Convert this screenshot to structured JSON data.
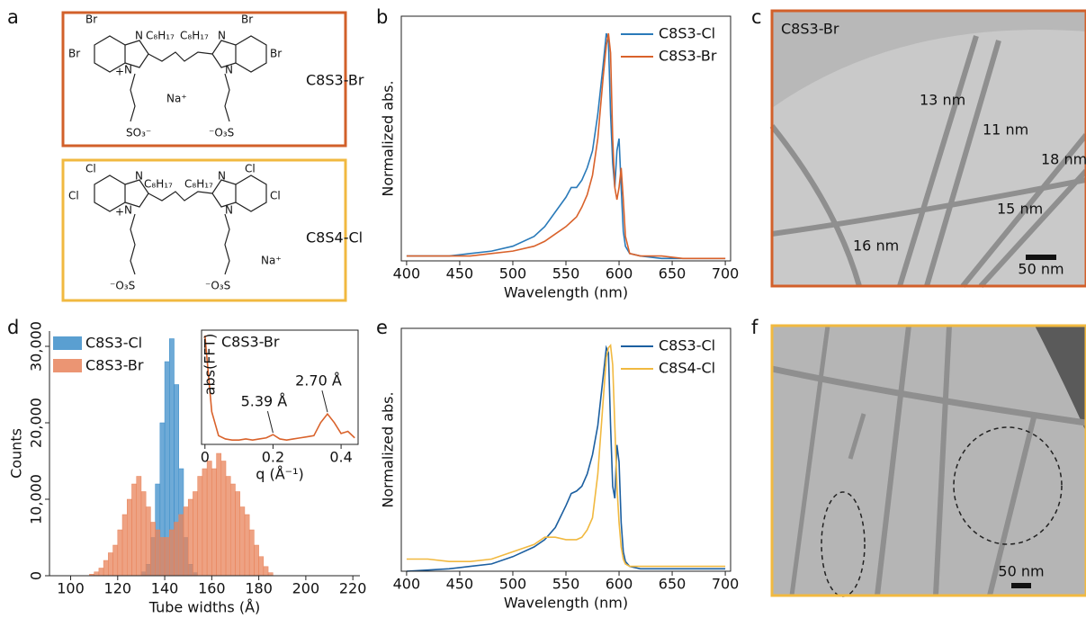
{
  "panel_labels": [
    "a",
    "b",
    "c",
    "d",
    "e",
    "f"
  ],
  "structures": [
    {
      "name": "C8S3-Br",
      "atoms": [
        "Br",
        "Br",
        "N",
        "C₈H₁₇",
        "C₈H₁₇",
        "N",
        "Br",
        "Br",
        "+",
        "N",
        "N",
        "Na⁺",
        "SO₃⁻",
        "⁻O₃S"
      ]
    },
    {
      "name": "C8S4-Cl",
      "atoms": [
        "Cl",
        "Cl",
        "N",
        "C₈H₁₇",
        "C₈H₁₇",
        "N",
        "Cl",
        "Cl",
        "+",
        "N",
        "N",
        "Na⁺",
        "⁻O₃S",
        "⁻O₃S"
      ]
    }
  ],
  "micrographs": [
    {
      "label": "C8S3-Br",
      "annotations": [
        "13 nm",
        "11 nm",
        "18 nm",
        "15 nm",
        "16 nm"
      ],
      "scale_bar": "50 nm"
    },
    {
      "scale_bar": "50 nm"
    }
  ],
  "chart_data": [
    {
      "type": "line",
      "xlabel": "Wavelength (nm)",
      "ylabel": "Normalized abs.",
      "x": [
        400,
        420,
        440,
        460,
        480,
        500,
        520,
        530,
        540,
        550,
        555,
        560,
        565,
        570,
        575,
        580,
        585,
        588,
        590,
        592,
        594,
        596,
        598,
        600,
        602,
        604,
        606,
        610,
        620,
        640,
        660,
        680,
        700
      ],
      "series": [
        {
          "name": "C8S3-Cl",
          "color": "#2a7ab9",
          "values": [
            0.02,
            0.02,
            0.02,
            0.03,
            0.04,
            0.06,
            0.1,
            0.14,
            0.2,
            0.26,
            0.3,
            0.3,
            0.33,
            0.38,
            0.45,
            0.6,
            0.8,
            0.93,
            0.9,
            0.6,
            0.4,
            0.3,
            0.45,
            0.5,
            0.3,
            0.12,
            0.06,
            0.03,
            0.02,
            0.01,
            0.01,
            0.01,
            0.01
          ]
        },
        {
          "name": "C8S3-Br",
          "color": "#d9622b",
          "values": [
            0.02,
            0.02,
            0.02,
            0.02,
            0.03,
            0.04,
            0.06,
            0.08,
            0.11,
            0.14,
            0.16,
            0.18,
            0.22,
            0.27,
            0.35,
            0.5,
            0.75,
            0.88,
            0.93,
            0.85,
            0.5,
            0.3,
            0.25,
            0.3,
            0.38,
            0.25,
            0.1,
            0.03,
            0.02,
            0.02,
            0.01,
            0.01,
            0.01
          ]
        }
      ],
      "xlim": [
        395,
        705
      ],
      "xticks": [
        400,
        450,
        500,
        550,
        600,
        650,
        700
      ],
      "ylim": [
        0,
        1
      ],
      "legend": "upper right"
    },
    {
      "type": "histogram",
      "xlabel": "Tube widths (Å)",
      "ylabel": "Counts",
      "bins": [
        106,
        108,
        110,
        112,
        114,
        116,
        118,
        120,
        122,
        124,
        126,
        128,
        130,
        132,
        134,
        136,
        138,
        140,
        142,
        144,
        146,
        148,
        150,
        152,
        154,
        156,
        158,
        160,
        162,
        164,
        166,
        168,
        170,
        172,
        174,
        176,
        178,
        180,
        182,
        184,
        186
      ],
      "series": [
        {
          "name": "C8S3-Cl",
          "color": "#3d8ec9",
          "values": [
            0,
            0,
            0,
            0,
            0,
            0,
            0,
            0,
            0,
            0,
            0,
            0,
            500,
            1500,
            5000,
            12000,
            20000,
            28000,
            31000,
            25000,
            14000,
            5000,
            1500,
            400,
            0,
            0,
            0,
            0,
            0,
            0,
            0,
            0,
            0,
            0,
            0,
            0,
            0,
            0,
            0,
            0
          ]
        },
        {
          "name": "C8S3-Br",
          "color": "#e8835a",
          "values": [
            0,
            200,
            500,
            1000,
            2000,
            3000,
            4000,
            6000,
            8000,
            10000,
            12000,
            13000,
            11000,
            9000,
            7000,
            6000,
            5000,
            5000,
            6000,
            7000,
            8000,
            9000,
            10000,
            11000,
            13000,
            14000,
            15000,
            14000,
            16000,
            15000,
            13000,
            12000,
            11000,
            9000,
            8000,
            6000,
            4000,
            2500,
            1200,
            400
          ]
        }
      ],
      "xlim": [
        91,
        223
      ],
      "xticks": [
        100,
        120,
        140,
        160,
        180,
        200,
        220
      ],
      "ylim": [
        0,
        32000
      ],
      "yticks": [
        0,
        {
          "value": 10000,
          "label": "10,000"
        },
        {
          "value": 20000,
          "label": "20,000"
        },
        {
          "value": 30000,
          "label": "30,000"
        }
      ],
      "legend": "upper left"
    },
    {
      "type": "line",
      "title": "C8S3-Br",
      "xlabel": "q (Å⁻¹)",
      "ylabel": "abs(FFT)",
      "x": [
        0,
        0.02,
        0.04,
        0.06,
        0.08,
        0.1,
        0.12,
        0.14,
        0.16,
        0.18,
        0.2,
        0.22,
        0.24,
        0.26,
        0.28,
        0.3,
        0.32,
        0.34,
        0.36,
        0.38,
        0.4,
        0.42,
        0.44
      ],
      "series": [
        {
          "name": "C8S3-Br",
          "color": "#d9622b",
          "values": [
            1.0,
            0.3,
            0.08,
            0.05,
            0.04,
            0.04,
            0.05,
            0.04,
            0.05,
            0.06,
            0.09,
            0.05,
            0.04,
            0.05,
            0.06,
            0.07,
            0.08,
            0.2,
            0.28,
            0.2,
            0.1,
            0.12,
            0.06
          ]
        }
      ],
      "annotations": [
        {
          "text": "5.39 Å",
          "x": 0.2,
          "y": 0.09
        },
        {
          "text": "2.70 Å",
          "x": 0.36,
          "y": 0.28
        }
      ],
      "xlim": [
        -0.01,
        0.45
      ],
      "xticks": [
        0,
        0.2,
        0.4
      ],
      "ylim": [
        0,
        1.05
      ]
    },
    {
      "type": "line",
      "xlabel": "Wavelength (nm)",
      "ylabel": "Normalized abs.",
      "x": [
        400,
        420,
        440,
        460,
        480,
        500,
        520,
        530,
        540,
        550,
        555,
        560,
        565,
        570,
        575,
        580,
        585,
        588,
        590,
        592,
        594,
        596,
        598,
        600,
        602,
        604,
        606,
        610,
        620,
        640,
        660,
        680,
        700
      ],
      "series": [
        {
          "name": "C8S3-Cl",
          "color": "#1c5fa0",
          "values": [
            0,
            0.005,
            0.01,
            0.02,
            0.03,
            0.06,
            0.1,
            0.13,
            0.18,
            0.27,
            0.32,
            0.33,
            0.35,
            0.4,
            0.48,
            0.6,
            0.8,
            0.92,
            0.9,
            0.6,
            0.35,
            0.3,
            0.52,
            0.45,
            0.2,
            0.08,
            0.04,
            0.02,
            0.01,
            0.01,
            0.01,
            0.01,
            0.01
          ]
        },
        {
          "name": "C8S4-Cl",
          "color": "#f1b940",
          "values": [
            0.05,
            0.05,
            0.04,
            0.04,
            0.05,
            0.08,
            0.11,
            0.14,
            0.14,
            0.13,
            0.13,
            0.13,
            0.14,
            0.17,
            0.22,
            0.4,
            0.7,
            0.88,
            0.92,
            0.93,
            0.85,
            0.6,
            0.35,
            0.2,
            0.1,
            0.05,
            0.03,
            0.02,
            0.02,
            0.02,
            0.02,
            0.02,
            0.02
          ]
        }
      ],
      "xlim": [
        395,
        705
      ],
      "xticks": [
        400,
        450,
        500,
        550,
        600,
        650,
        700
      ],
      "ylim": [
        0,
        1
      ],
      "legend": "upper right"
    }
  ]
}
